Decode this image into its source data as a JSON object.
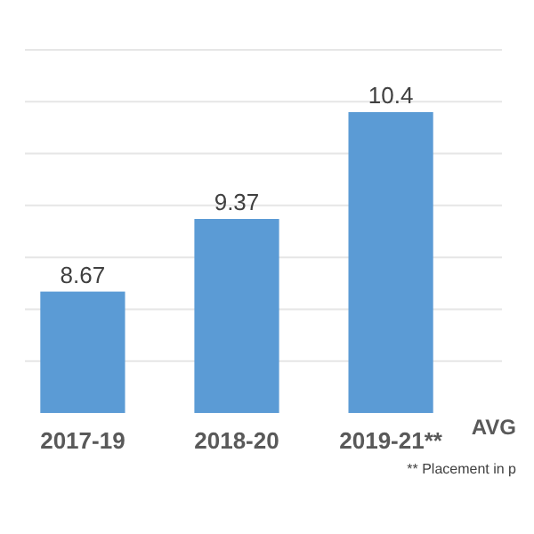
{
  "chart_data": {
    "type": "bar",
    "categories": [
      "2017-19",
      "2018-20",
      "2019-21**"
    ],
    "values": [
      8.67,
      9.37,
      10.4
    ],
    "color": "#5b9bd5",
    "data_labels": true,
    "ylim": [
      7.5,
      11
    ],
    "yticks": [
      {
        "value": 8,
        "label": null
      },
      {
        "value": 8.5,
        "label": null
      },
      {
        "value": 9,
        "label": null
      },
      {
        "value": 9.5,
        "label": null
      },
      {
        "value": 10,
        "label": null
      },
      {
        "value": 10.5,
        "label": null
      },
      {
        "value": 11,
        "label": null
      }
    ],
    "grid": "y",
    "tick_labels": "x",
    "annotations": [
      "AVG",
      "** Placement in p"
    ]
  }
}
